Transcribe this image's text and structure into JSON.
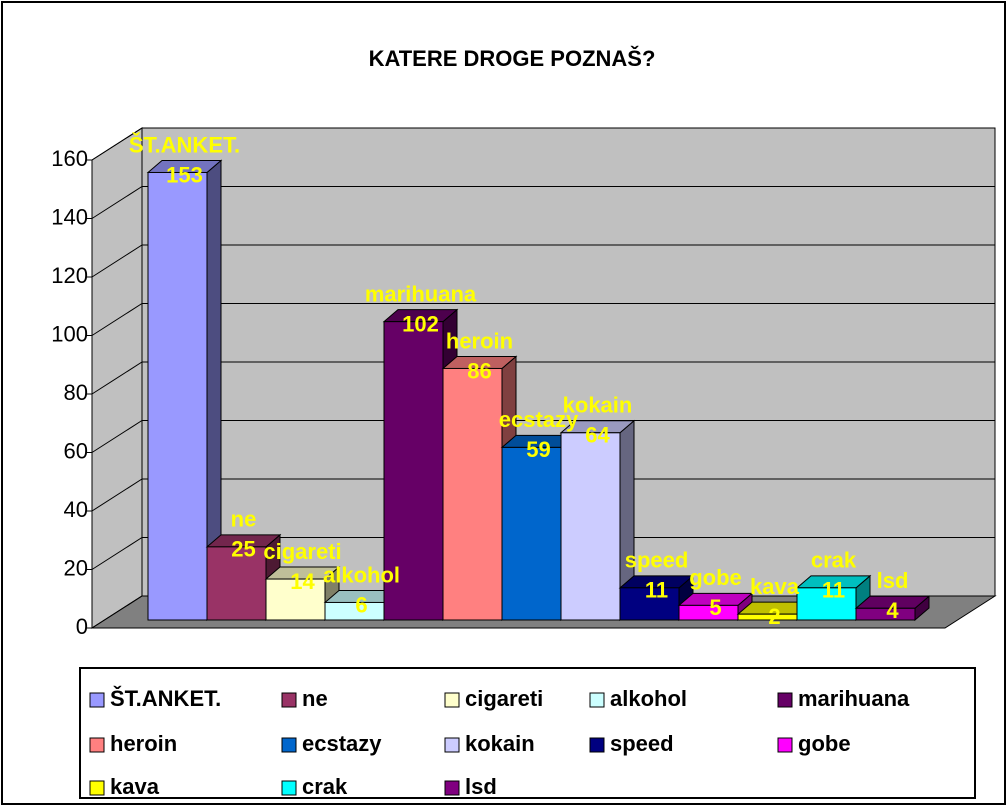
{
  "chart_data": {
    "type": "bar3d",
    "title": "KATERE DROGE POZNAŠ?",
    "ylim": [
      0,
      160
    ],
    "yticks": [
      0,
      20,
      40,
      60,
      80,
      100,
      120,
      140,
      160
    ],
    "grid": true,
    "series": [
      {
        "name": "ŠT.ANKET.",
        "color": "#9999ff",
        "values": [
          153
        ]
      },
      {
        "name": "ne",
        "color": "#993366",
        "values": [
          25
        ]
      },
      {
        "name": "cigareti",
        "color": "#ffffcc",
        "values": [
          14
        ]
      },
      {
        "name": "alkohol",
        "color": "#ccffff",
        "values": [
          6
        ]
      },
      {
        "name": "marihuana",
        "color": "#660066",
        "values": [
          102
        ]
      },
      {
        "name": "heroin",
        "color": "#ff8080",
        "values": [
          86
        ]
      },
      {
        "name": "ecstazy",
        "color": "#0066cc",
        "values": [
          59
        ]
      },
      {
        "name": "kokain",
        "color": "#ccccff",
        "values": [
          64
        ]
      },
      {
        "name": "speed",
        "color": "#000080",
        "values": [
          11
        ]
      },
      {
        "name": "gobe",
        "color": "#ff00ff",
        "values": [
          5
        ]
      },
      {
        "name": "kava",
        "color": "#ffff00",
        "values": [
          2
        ]
      },
      {
        "name": "crak",
        "color": "#00ffff",
        "values": [
          11
        ]
      },
      {
        "name": "lsd",
        "color": "#800080",
        "values": [
          4
        ]
      }
    ]
  }
}
